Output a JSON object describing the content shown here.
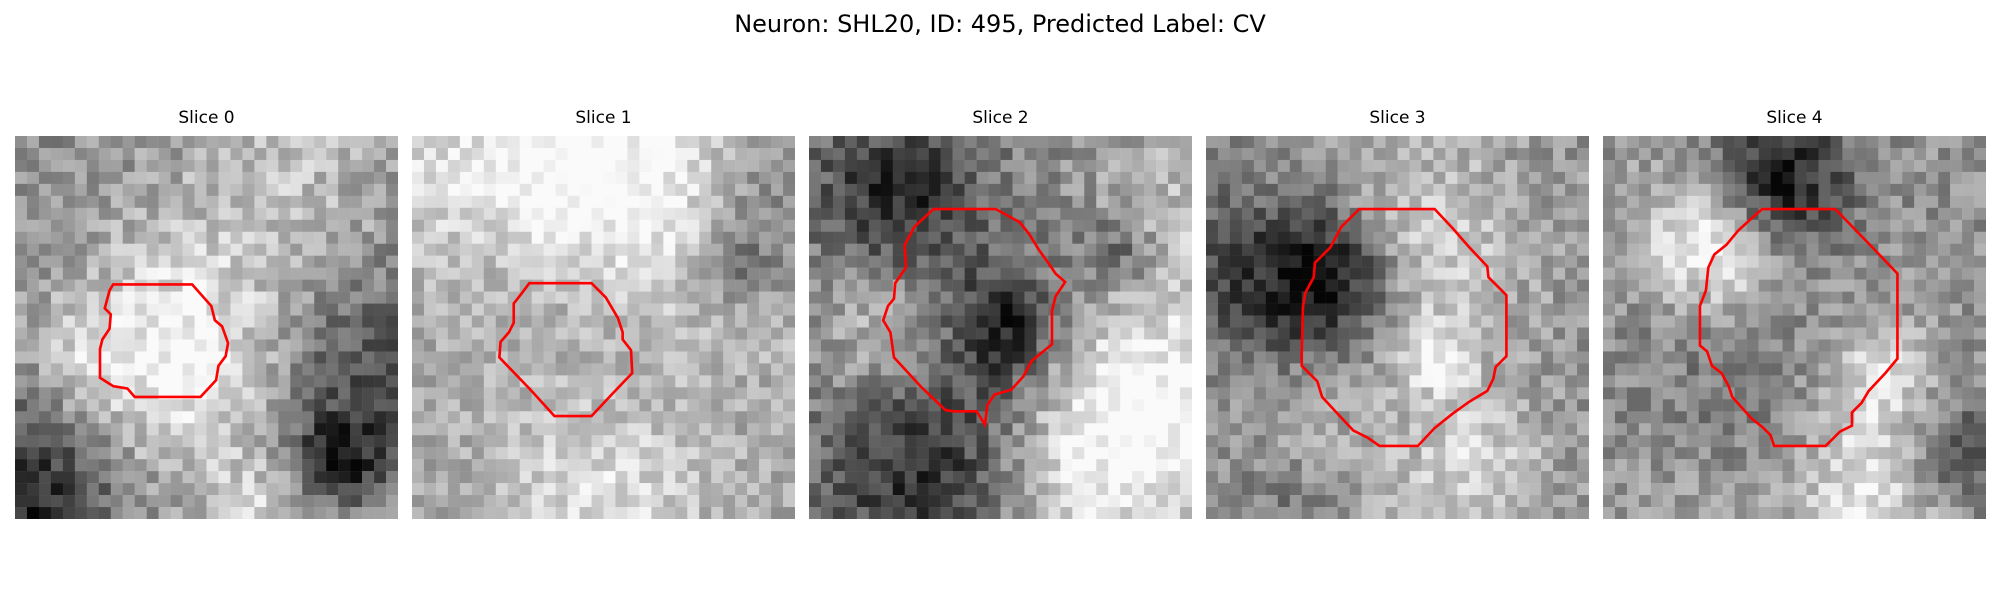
{
  "figure": {
    "title": "Neuron: SHL20, ID: 495, Predicted Label: CV",
    "contour_color": "#ff0000",
    "colormap": "gray"
  },
  "panels": [
    {
      "title": "Slice 0",
      "brightness": 0.56,
      "contrast": 0.3,
      "seed": 11,
      "dark_blobs": 3
    },
    {
      "title": "Slice 1",
      "brightness": 0.66,
      "contrast": 0.26,
      "seed": 23,
      "dark_blobs": 2
    },
    {
      "title": "Slice 2",
      "brightness": 0.5,
      "contrast": 0.3,
      "seed": 37,
      "dark_blobs": 4
    },
    {
      "title": "Slice 3",
      "brightness": 0.58,
      "contrast": 0.28,
      "seed": 41,
      "dark_blobs": 3
    },
    {
      "title": "Slice 4",
      "brightness": 0.57,
      "contrast": 0.28,
      "seed": 53,
      "dark_blobs": 3
    }
  ]
}
